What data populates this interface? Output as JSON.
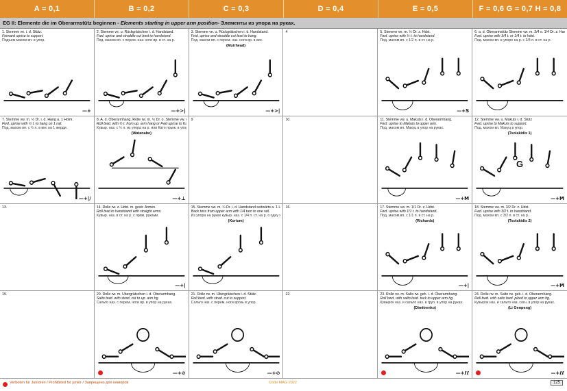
{
  "header": [
    "A = 0,1",
    "B = 0,2",
    "C = 0,3",
    "D = 0,4",
    "E = 0,5",
    "F = 0,6 G = 0,7 H = 0,8"
  ],
  "section": {
    "de": "EG II: Elemente die im Oberarmstütz beginnen -",
    "en": "Elements starting in upper arm position-",
    "ru": "Элементы из упора на руках."
  },
  "cells": [
    {
      "no": "1.",
      "l1": "Stemme ve. i. d. Stütz.",
      "l2": "Forward uprise to support.",
      "l3": "Подъем махом вп. в упор.",
      "name": "",
      "sym": "—+",
      "fig": "low"
    },
    {
      "no": "2.",
      "l1": "Stemme ve. u. Rückgrätschen i. d. Handstand.",
      "l2": "Fwd. uprise and straddle cut bwd to handstand.",
      "l3": "Под. махом вп. с перем. наз. ноги вр. в ст. на р.",
      "name": "",
      "sym": "—+>|",
      "fig": "wide"
    },
    {
      "no": "3.",
      "l1": "Stemme ve. u. Rückgrätschen i. d. Handstand.",
      "l2": "Fwd. uprise and straddle cut bwd to hang.",
      "l3": "Под. махом вп. с перем. наз. ноги вр. в вис.",
      "name": "(Muirhead)",
      "sym": "—+>|",
      "fig": "wide"
    },
    {
      "no": "4",
      "l1": "",
      "l2": "",
      "l3": "",
      "name": "",
      "sym": "",
      "fig": "none"
    },
    {
      "no": "5.",
      "l1": "Stemme ve. m. ½ Dr. z. Hdst.",
      "l2": "Fwd. uprise with ½ t. to handstand.",
      "l3": "Под. махом вп. с 1/2 п. в ст. на р.",
      "name": "",
      "sym": "—+S",
      "fig": "swing"
    },
    {
      "no": "6.",
      "l1": "a. d. Oberarmstütz Stemme vw. m. 3/4 o. 1/4 Dr. z. Handstand",
      "l2": "Fwd. uprise with 3/4 t. or 1/4 t. to hdst.",
      "l3": "Под. махом вп. в упоре на р. с 3/4 п. в ст. на р.",
      "name": "",
      "sym": "",
      "fig": "swing"
    },
    {
      "no": "7.",
      "l1": "Stemme vw. m. ½ Dr. i. d. Hang a. 1 Holm.",
      "l2": "Fwd. uprise with ½ t. to hang on 1 rail.",
      "l3": "Под. махом вп. с ½ п. в вис на 1 жерди.",
      "name": "",
      "sym": "—+|/",
      "fig": "hang"
    },
    {
      "no": "8.",
      "l1": "A. d. Oberarmhang, Rolle rw. m. ½ Dr. o. Stemme vw. u. Kato Sprung i. d. Stütz.",
      "l2": "Roll bwd. with ½ t. from up. arm hang or Fwd uprise to Kato leap to sup.",
      "l3": "Кувыр. наз. с ½ п. из упора на р. или Като прыж. в упор.",
      "name": "(Watanabe)",
      "sym": "—+⊥",
      "fig": "kato"
    },
    {
      "no": "9",
      "l1": "",
      "l2": "",
      "l3": "",
      "name": "",
      "sym": "",
      "fig": "none"
    },
    {
      "no": "10.",
      "l1": "",
      "l2": "",
      "l3": "",
      "name": "",
      "sym": "",
      "fig": "none"
    },
    {
      "no": "11.",
      "l1": "Stemme vw. u. Makuts i. d. Oberarmhang.",
      "l2": "Fwd. uprise to Makuts to upper arm.",
      "l3": "Под. махом вп. Макуц в упор на руках.",
      "name": "",
      "sym": "—+M",
      "fig": "makuts"
    },
    {
      "no": "12.",
      "l1": "Stemme vw. u. Makuts i. d. Stütz",
      "l2": "Fwd. uprise to Makuts to support.",
      "l3": "Под. махом вп. Макуц в упор.",
      "name": "(Tsolakidis 1)",
      "sym": "—+M",
      "big": "G",
      "fig": "makuts"
    },
    {
      "no": "13.",
      "l1": "",
      "l2": "",
      "l3": "",
      "name": "",
      "sym": "",
      "fig": "none"
    },
    {
      "no": "14.",
      "l1": "Rolle rw. z. Hdst. m. gestr. Armen.",
      "l2": "Roll bwd to handstand with straight arms.",
      "l3": "Кувыр. наз. в ст. на р. с прям. руками.",
      "name": "",
      "sym": "—+|",
      "fig": "roll"
    },
    {
      "no": "15.",
      "l1": "Stemme vw. m. ¼ Dr. i. d. Handstand seitwärts a. 1 Holm.",
      "l2": "Back toss from upper arm with 1/4 turn to one rail.",
      "l3": "Из упора на руках кувыр. наз. с 1/4 п. ст. на р. о одну жердь.",
      "name": "(Korium)",
      "sym": "",
      "fig": "roll"
    },
    {
      "no": "16.",
      "l1": "",
      "l2": "",
      "l3": "",
      "name": "",
      "sym": "",
      "fig": "none"
    },
    {
      "no": "17.",
      "l1": "Stemme vw. m. 1/1 Dr. z. Hdst.",
      "l2": "Fwd. uprise with 1/1 t. to handstand.",
      "l3": "Под. махом вп. с 1/1 п. в ст. на р.",
      "name": "(Richards)",
      "sym": "—+|",
      "fig": "swing"
    },
    {
      "no": "18.",
      "l1": "Stemme vw. m. 3/2 Dr. z. Hdst.",
      "l2": "Fwd. uprise with 3/2 t. to handstand.",
      "l3": "Под. махом вп. с 3/2 п. в ст. на р.",
      "name": "(Tsolakidis 2)",
      "sym": "—+M",
      "fig": "swing"
    },
    {
      "no": "19.",
      "l1": "",
      "l2": "",
      "l3": "",
      "name": "",
      "sym": "",
      "fig": "none"
    },
    {
      "no": "20.",
      "l1": "Rolle rw. m. Übergrätschen i. d. Oberarmhang.",
      "l2": "Salto bwd. with strad. cut to up. arm hg.",
      "l3": "Сальто наз. с перем. ноги вр. в упор на руках.",
      "name": "",
      "sym": "—+⊘",
      "red": true,
      "fig": "salto"
    },
    {
      "no": "21.",
      "l1": "Rolle rw. m. Übergrätschen i. d. Stütz.",
      "l2": "Roll bwd. with strad. cut to support.",
      "l3": "Сальто наз. с перем. ноги врозь в упор.",
      "name": "",
      "sym": "—+⊘",
      "fig": "salto"
    },
    {
      "no": "22.",
      "l1": "",
      "l2": "",
      "l3": "",
      "name": "",
      "sym": "",
      "fig": "none"
    },
    {
      "no": "23.",
      "l1": "Rolle rw. m. Salto rw. geh. i. d. Oberarmhang.",
      "l2": "Roll bwd. with salto bwd. tuck to upper arm hg.",
      "l3": "Кувырок наз. и сальто наз. в груп. в упор на руках.",
      "name": "(Dimitrenko)",
      "sym": "—+ℓℓ",
      "red": true,
      "fig": "salto"
    },
    {
      "no": "24.",
      "l1": "Rolle rw. m. Salto rw. geb. i. d. Oberarmhang.",
      "l2": "Roll bwd. with salto bwd. piked to upper arm hg.",
      "l3": "Кувырок наз. и сальто наз. согн. в упор на руках.",
      "name": "(Li Genpeng)",
      "sym": "—+ℓℓ",
      "red": true,
      "fig": "salto"
    }
  ],
  "footer": {
    "legend": "Verboten für Junioren / Prohibited for junior / Запрещено для юниоров",
    "code": "Code MAG 2022",
    "page": "125"
  }
}
